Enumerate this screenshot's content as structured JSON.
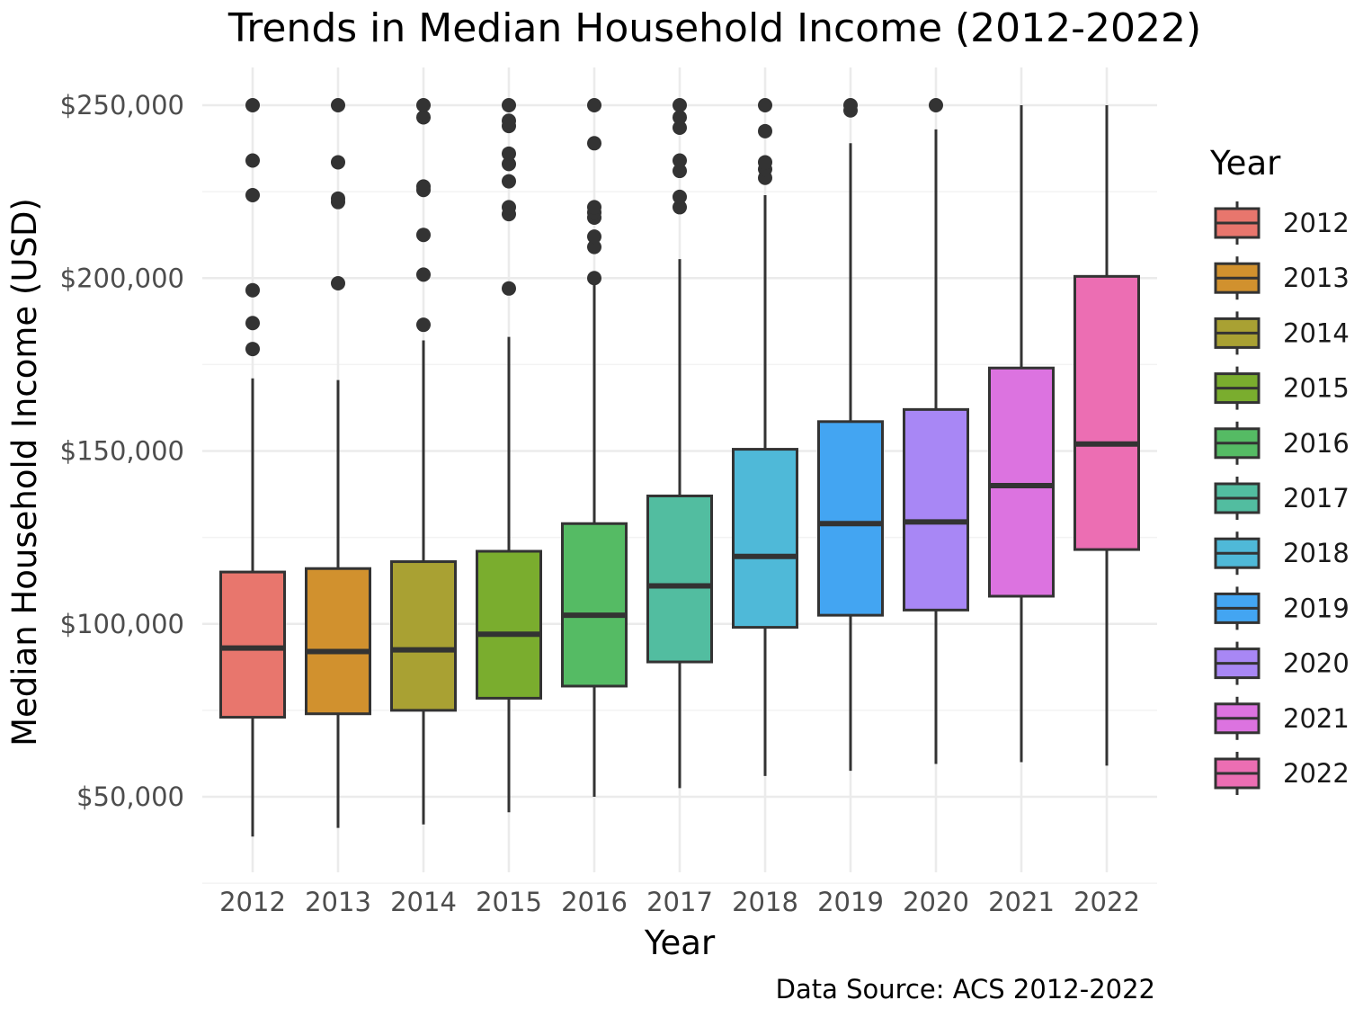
{
  "chart_data": {
    "type": "box",
    "title": "Trends in Median Household Income (2012-2022)",
    "xlabel": "Year",
    "ylabel": "Median Household Income (USD)",
    "caption": "Data Source: ACS 2012-2022",
    "legend_title": "Year",
    "legend_placement": "right",
    "grid": true,
    "ylim": [
      28000,
      260000
    ],
    "y_ticks": [
      50000,
      100000,
      150000,
      200000,
      250000
    ],
    "y_tick_labels": [
      "$50,000",
      "$100,000",
      "$150,000",
      "$200,000",
      "$250,000"
    ],
    "categories": [
      "2012",
      "2013",
      "2014",
      "2015",
      "2016",
      "2017",
      "2018",
      "2019",
      "2020",
      "2021",
      "2022"
    ],
    "colors": [
      "#E8766D",
      "#D1912E",
      "#A9A133",
      "#7AAD2E",
      "#55BB64",
      "#52BDA0",
      "#4FB9D8",
      "#43A5F2",
      "#A887F5",
      "#DC73E0",
      "#EC6EB3"
    ],
    "boxes": [
      {
        "min": 38500,
        "q1": 73000,
        "median": 93000,
        "q3": 115000,
        "max": 171000,
        "outliers": [
          179500,
          187000,
          196500,
          224000,
          234000,
          250000
        ]
      },
      {
        "min": 41000,
        "q1": 74000,
        "median": 92000,
        "q3": 116000,
        "max": 170500,
        "outliers": [
          198500,
          222000,
          223000,
          233500,
          250000
        ]
      },
      {
        "min": 42000,
        "q1": 75000,
        "median": 92500,
        "q3": 118000,
        "max": 182000,
        "outliers": [
          186500,
          201000,
          212500,
          225500,
          226500,
          246500,
          250000
        ]
      },
      {
        "min": 45500,
        "q1": 78500,
        "median": 97000,
        "q3": 121000,
        "max": 183000,
        "outliers": [
          197000,
          218500,
          220500,
          228000,
          233000,
          236000,
          244000,
          245500,
          250000
        ]
      },
      {
        "min": 50000,
        "q1": 82000,
        "median": 102500,
        "q3": 129000,
        "max": 199000,
        "outliers": [
          200000,
          209000,
          212000,
          217500,
          219000,
          220500,
          239000,
          250000
        ]
      },
      {
        "min": 52500,
        "q1": 89000,
        "median": 111000,
        "q3": 137000,
        "max": 205500,
        "outliers": [
          220500,
          223500,
          231000,
          234000,
          243500,
          246500,
          250000
        ]
      },
      {
        "min": 56000,
        "q1": 99000,
        "median": 119500,
        "q3": 150500,
        "max": 224000,
        "outliers": [
          229000,
          231500,
          233500,
          242500,
          250000
        ]
      },
      {
        "min": 57500,
        "q1": 102500,
        "median": 129000,
        "q3": 158500,
        "max": 239000,
        "outliers": [
          248500,
          250000
        ]
      },
      {
        "min": 59500,
        "q1": 104000,
        "median": 129500,
        "q3": 162000,
        "max": 243000,
        "outliers": [
          250000
        ]
      },
      {
        "min": 60000,
        "q1": 108000,
        "median": 140000,
        "q3": 174000,
        "max": 250000,
        "outliers": []
      },
      {
        "min": 59000,
        "q1": 121500,
        "median": 152000,
        "q3": 200500,
        "max": 250000,
        "outliers": []
      }
    ]
  }
}
